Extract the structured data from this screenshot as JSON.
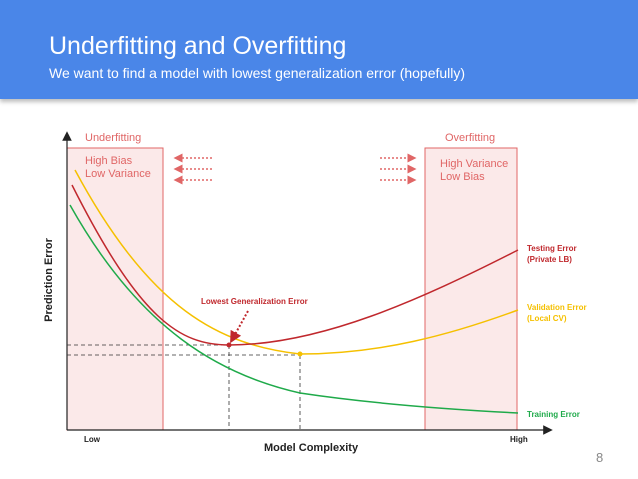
{
  "slide": {
    "title": "Underfitting and Overfitting",
    "subtitle": "We want to find a model with lowest generalization error (hopefully)",
    "page_number": "8"
  },
  "diagram": {
    "y_axis_label": "Prediction Error",
    "x_axis_label": "Model Complexity",
    "x_low": "Low",
    "x_high": "High",
    "underfitting": {
      "title": "Underfitting",
      "line1": "High Bias",
      "line2": "Low Variance"
    },
    "overfitting": {
      "title": "Overfitting",
      "line1": "High Variance",
      "line2": "Low Bias"
    },
    "lowest_error_label": "Lowest Generalization Error",
    "curves": {
      "testing": {
        "line1": "Testing Error",
        "line2": "(Private LB)",
        "color": "#c0282d"
      },
      "validation": {
        "line1": "Validation Error",
        "line2": "(Local CV)",
        "color": "#f5c000"
      },
      "training": {
        "line1": "Training Error",
        "color": "#1faa4a"
      }
    },
    "region_color": "#f4cccc",
    "region_border": "#e06666"
  }
}
